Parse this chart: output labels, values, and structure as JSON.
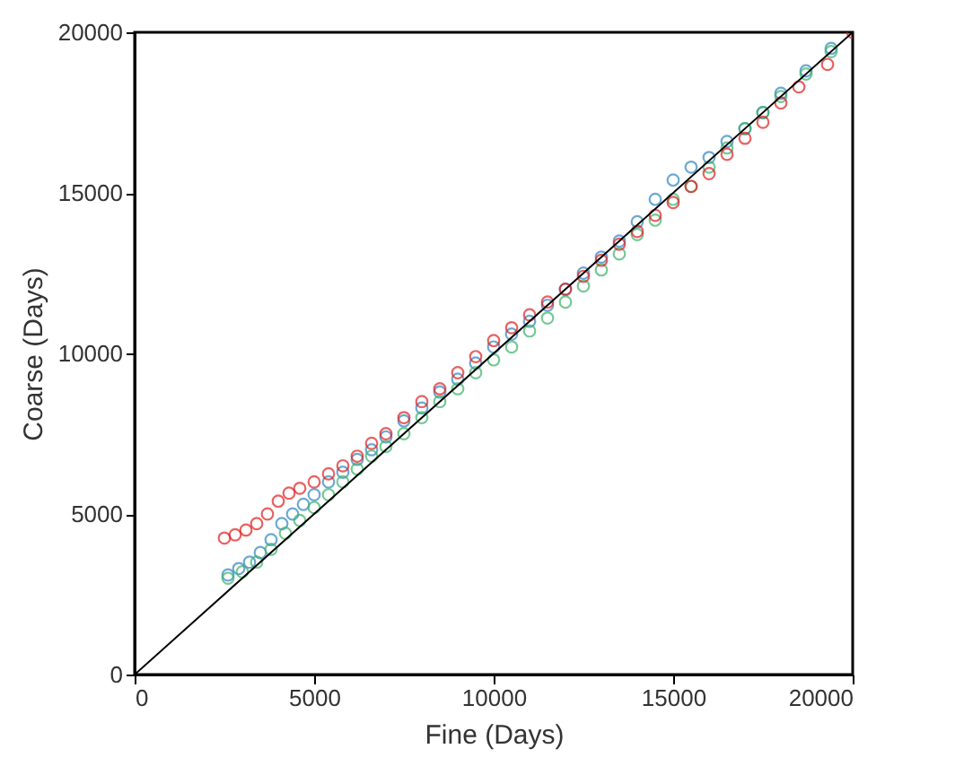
{
  "chart_data": {
    "type": "scatter",
    "xlabel": "Fine (Days)",
    "ylabel": "Coarse (Days)",
    "xlim": [
      0,
      20000
    ],
    "ylim": [
      0,
      20000
    ],
    "xticks": [
      0,
      5000,
      10000,
      15000,
      20000
    ],
    "yticks": [
      0,
      5000,
      10000,
      15000,
      20000
    ],
    "grid": false,
    "marker": "circle",
    "series": [
      {
        "color": "#2e86c1",
        "x": [
          2600,
          2900,
          3200,
          3500,
          3800,
          4100,
          4400,
          4700,
          5000,
          5400,
          5800,
          6200,
          6600,
          7000,
          7500,
          8000,
          8500,
          9000,
          9500,
          10000,
          10500,
          11000,
          11500,
          12000,
          12500,
          13000,
          13500,
          14000,
          14500,
          15000,
          15500,
          16000,
          16500,
          17000,
          17500,
          18000,
          18700,
          19400
        ],
        "values": [
          3100,
          3300,
          3500,
          3800,
          4200,
          4700,
          5000,
          5300,
          5600,
          6000,
          6300,
          6700,
          7000,
          7400,
          7900,
          8300,
          8800,
          9200,
          9700,
          10200,
          10600,
          11000,
          11500,
          12000,
          12500,
          13000,
          13500,
          14100,
          14800,
          15400,
          15800,
          16100,
          16600,
          17000,
          17500,
          18100,
          18800,
          19500
        ]
      },
      {
        "color": "#3cb36a",
        "x": [
          2600,
          3000,
          3400,
          3800,
          4200,
          4600,
          5000,
          5400,
          5800,
          6200,
          6600,
          7000,
          7500,
          8000,
          8500,
          9000,
          9500,
          10000,
          10500,
          11000,
          11500,
          12000,
          12500,
          13000,
          13500,
          14000,
          14500,
          15000,
          15500,
          16000,
          16500,
          17000,
          17500,
          18000,
          18700,
          19400
        ],
        "values": [
          3000,
          3200,
          3500,
          3900,
          4400,
          4800,
          5200,
          5600,
          6000,
          6400,
          6800,
          7100,
          7500,
          8000,
          8500,
          8900,
          9400,
          9800,
          10200,
          10700,
          11100,
          11600,
          12100,
          12600,
          13100,
          13700,
          14150,
          14800,
          15200,
          15800,
          16400,
          17000,
          17500,
          18000,
          18700,
          19400
        ]
      },
      {
        "color": "#e02020",
        "x": [
          2500,
          2800,
          3100,
          3400,
          3700,
          4000,
          4300,
          4600,
          5000,
          5400,
          5800,
          6200,
          6600,
          7000,
          7500,
          8000,
          8500,
          9000,
          9500,
          10000,
          10500,
          11000,
          11500,
          12000,
          12500,
          13000,
          13500,
          14000,
          14500,
          15000,
          15500,
          16000,
          16500,
          17000,
          17500,
          18000,
          18500,
          19300,
          20000
        ],
        "values": [
          4250,
          4350,
          4500,
          4700,
          5000,
          5400,
          5650,
          5800,
          6000,
          6250,
          6500,
          6800,
          7200,
          7500,
          8000,
          8500,
          8900,
          9400,
          9900,
          10400,
          10800,
          11200,
          11600,
          12000,
          12400,
          12900,
          13400,
          13800,
          14300,
          14700,
          15200,
          15600,
          16200,
          16700,
          17200,
          17800,
          18300,
          19000,
          20000
        ]
      },
      {
        "type": "line",
        "marker": "none",
        "color": "#000000",
        "x": [
          0,
          20000
        ],
        "values": [
          0,
          20000
        ]
      }
    ]
  }
}
